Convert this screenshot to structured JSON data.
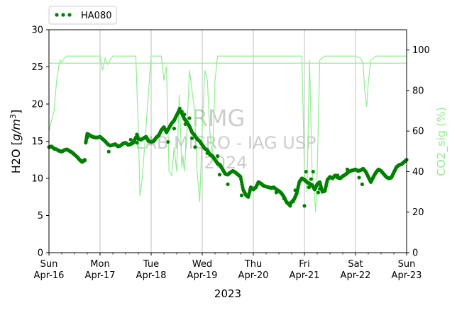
{
  "chart_data": {
    "type": "scatter",
    "x_axis": {
      "ticks": [
        {
          "day": "Sun",
          "date": "Apr-16"
        },
        {
          "day": "Mon",
          "date": "Apr-17"
        },
        {
          "day": "Tue",
          "date": "Apr-18"
        },
        {
          "day": "Wed",
          "date": "Apr-19"
        },
        {
          "day": "Thu",
          "date": "Apr-20"
        },
        {
          "day": "Fri",
          "date": "Apr-21"
        },
        {
          "day": "Sat",
          "date": "Apr-22"
        },
        {
          "day": "Sun",
          "date": "Apr-23"
        }
      ],
      "xlabel": "2023",
      "xlim": [
        "2023-04-16",
        "2023-04-23"
      ],
      "grid": true
    },
    "y_left": {
      "label_prefix": "H2O [",
      "label_unit": "g/m",
      "label_exp": "3",
      "label_suffix": "]",
      "ylim": [
        0,
        30
      ],
      "ticks": [
        0,
        5,
        10,
        15,
        20,
        25,
        30
      ]
    },
    "y_right": {
      "label": "CO2_sig (%)",
      "ylim": [
        0,
        110
      ],
      "ticks": [
        0,
        20,
        40,
        60,
        80,
        100
      ],
      "color": "#90ee90",
      "reference_line": 93.5
    },
    "legend": {
      "placement": "top-left outside",
      "entries": [
        "HA080"
      ]
    },
    "watermark": {
      "lines": [
        "RMG",
        "LAB MICRO - IAG USP",
        "2024"
      ]
    },
    "series": [
      {
        "name": "HA080",
        "axis": "left",
        "style": "points",
        "color": "#008000",
        "x": [
          0.0,
          0.05,
          0.1,
          0.15,
          0.2,
          0.25,
          0.3,
          0.35,
          0.4,
          0.45,
          0.5,
          0.55,
          0.6,
          0.65,
          0.7,
          0.72,
          0.75,
          0.8,
          0.85,
          0.9,
          0.95,
          1.0,
          1.05,
          1.1,
          1.15,
          1.2,
          1.25,
          1.3,
          1.35,
          1.4,
          1.45,
          1.5,
          1.55,
          1.6,
          1.65,
          1.7,
          1.72,
          1.75,
          1.8,
          1.85,
          1.9,
          1.95,
          2.0,
          2.05,
          2.1,
          2.15,
          2.2,
          2.25,
          2.3,
          2.35,
          2.4,
          2.45,
          2.5,
          2.55,
          2.6,
          2.65,
          2.7,
          2.75,
          2.8,
          2.85,
          2.9,
          2.95,
          3.0,
          3.05,
          3.1,
          3.15,
          3.2,
          3.25,
          3.3,
          3.35,
          3.4,
          3.45,
          3.5,
          3.55,
          3.6,
          3.65,
          3.7,
          3.75,
          3.8,
          3.85,
          3.9,
          3.95,
          4.0,
          4.05,
          4.1,
          4.15,
          4.2,
          4.25,
          4.3,
          4.35,
          4.4,
          4.45,
          4.5,
          4.55,
          4.6,
          4.65,
          4.7,
          4.75,
          4.8,
          4.85,
          4.9,
          4.95,
          5.0,
          5.05,
          5.1,
          5.15,
          5.2,
          5.25,
          5.3,
          5.35,
          5.4,
          5.45,
          5.5,
          5.55,
          5.6,
          5.65,
          5.7,
          5.75,
          5.8,
          5.85,
          5.9,
          5.95,
          6.0,
          6.05,
          6.1,
          6.15,
          6.2,
          6.25,
          6.3,
          6.35,
          6.4,
          6.45,
          6.5,
          6.55,
          6.6,
          6.65,
          6.7,
          6.75,
          6.8,
          6.85,
          6.9,
          6.95,
          7.0
        ],
        "y": [
          14.2,
          14.3,
          14.0,
          13.9,
          13.7,
          13.6,
          13.8,
          13.9,
          13.7,
          13.5,
          13.2,
          12.9,
          12.5,
          12.2,
          12.5,
          14.8,
          16.0,
          15.8,
          15.6,
          15.5,
          15.5,
          15.6,
          15.3,
          15.0,
          14.6,
          14.4,
          14.5,
          14.6,
          14.3,
          14.4,
          14.7,
          14.8,
          14.5,
          14.6,
          14.8,
          15.5,
          15.9,
          15.3,
          15.2,
          15.4,
          15.6,
          15.0,
          14.9,
          15.0,
          15.5,
          15.8,
          16.5,
          16.9,
          16.2,
          16.8,
          17.4,
          17.8,
          18.5,
          19.2,
          18.8,
          18.0,
          17.6,
          17.0,
          16.2,
          15.8,
          15.3,
          15.0,
          14.5,
          14.0,
          13.8,
          13.2,
          13.0,
          12.5,
          12.0,
          11.8,
          11.2,
          10.6,
          10.5,
          10.8,
          11.0,
          10.8,
          10.5,
          10.2,
          8.5,
          7.8,
          7.5,
          8.8,
          8.5,
          8.8,
          9.5,
          9.3,
          9.0,
          8.9,
          8.8,
          8.7,
          8.8,
          8.5,
          8.3,
          8.0,
          7.5,
          6.8,
          6.5,
          6.8,
          7.2,
          8.0,
          9.5,
          10.0,
          9.8,
          9.5,
          9.3,
          9.1,
          8.5,
          9.2,
          9.5,
          8.2,
          8.3,
          9.8,
          10.2,
          10.0,
          10.4,
          10.1,
          10.0,
          10.3,
          10.5,
          10.8,
          11.0,
          11.1,
          11.2,
          11.0,
          11.1,
          11.3,
          10.9,
          10.2,
          9.5,
          10.2,
          10.8,
          11.2,
          11.0,
          10.6,
          10.2,
          10.0,
          10.1,
          10.8,
          11.5,
          11.8,
          11.9,
          12.2,
          12.5
        ],
        "extra_points": [
          [
            0.7,
            12.4
          ],
          [
            0.75,
            15.5
          ],
          [
            1.17,
            13.6
          ],
          [
            1.6,
            15.2
          ],
          [
            1.72,
            14.8
          ],
          [
            2.33,
            14.9
          ],
          [
            2.45,
            16.7
          ],
          [
            2.56,
            19.4
          ],
          [
            2.6,
            19.0
          ],
          [
            2.65,
            18.6
          ],
          [
            2.67,
            17.3
          ],
          [
            2.75,
            18.1
          ],
          [
            2.8,
            15.4
          ],
          [
            2.86,
            14.2
          ],
          [
            3.1,
            13.4
          ],
          [
            3.3,
            13.0
          ],
          [
            3.34,
            10.5
          ],
          [
            3.5,
            9.2
          ],
          [
            3.77,
            7.7
          ],
          [
            4.45,
            8.1
          ],
          [
            4.6,
            7.3
          ],
          [
            4.72,
            6.3
          ],
          [
            4.78,
            6.9
          ],
          [
            4.82,
            8.4
          ],
          [
            5.0,
            6.3
          ],
          [
            5.03,
            10.9
          ],
          [
            5.09,
            8.8
          ],
          [
            5.13,
            9.9
          ],
          [
            5.17,
            10.9
          ],
          [
            5.27,
            8.1
          ],
          [
            5.3,
            8.6
          ],
          [
            5.65,
            10.4
          ],
          [
            5.84,
            11.2
          ],
          [
            6.07,
            10.1
          ],
          [
            6.13,
            9.2
          ]
        ]
      },
      {
        "name": "CO2_sig",
        "axis": "right",
        "style": "line",
        "color": "#90ee90",
        "x": [
          0.0,
          0.1,
          0.15,
          0.2,
          0.22,
          0.25,
          0.3,
          0.35,
          0.5,
          0.8,
          1.0,
          1.05,
          1.1,
          1.15,
          1.2,
          1.25,
          1.5,
          1.7,
          1.75,
          1.78,
          1.82,
          1.88,
          1.95,
          2.0,
          2.2,
          2.25,
          2.3,
          2.35,
          2.4,
          2.45,
          2.5,
          2.55,
          2.6,
          2.62,
          2.65,
          2.7,
          2.75,
          2.8,
          2.85,
          2.9,
          2.95,
          3.0,
          3.05,
          3.1,
          3.15,
          3.2,
          3.25,
          3.3,
          3.5,
          4.0,
          4.5,
          4.6,
          4.8,
          4.95,
          5.0,
          5.05,
          5.1,
          5.15,
          5.18,
          5.22,
          5.25,
          5.3,
          5.4,
          6.0,
          6.1,
          6.15,
          6.18,
          6.22,
          6.25,
          6.3,
          6.4,
          7.0
        ],
        "y": [
          60,
          70,
          85,
          93,
          95,
          94,
          96,
          97,
          97,
          97,
          97,
          90,
          96,
          93,
          95,
          97,
          97,
          97,
          60,
          28,
          35,
          55,
          80,
          97,
          97,
          85,
          92,
          40,
          38,
          52,
          40,
          78,
          42,
          48,
          40,
          60,
          90,
          80,
          70,
          40,
          25,
          60,
          90,
          85,
          60,
          45,
          85,
          97,
          97,
          97,
          97,
          97,
          97,
          97,
          40,
          30,
          95,
          40,
          33,
          20,
          40,
          95,
          97,
          97,
          96,
          93,
          80,
          72,
          84,
          95,
          97,
          97
        ]
      }
    ]
  }
}
